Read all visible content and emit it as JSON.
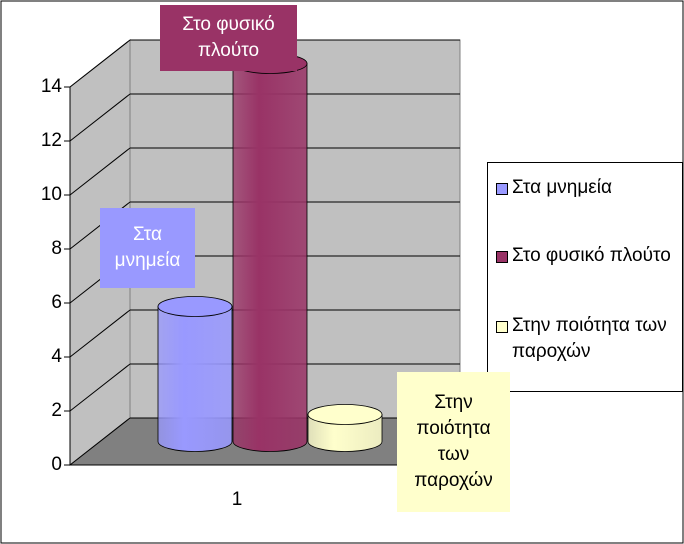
{
  "chart_data": {
    "type": "bar3d_cylinder",
    "categories": [
      "1"
    ],
    "series": [
      {
        "name": "Στα μνημεία",
        "color": "#9999ff",
        "values": [
          5
        ]
      },
      {
        "name": "Στο φυσικό πλούτο",
        "color": "#993366",
        "values": [
          14
        ]
      },
      {
        "name": "Στην ποιότητα των παροχών",
        "color": "#ffffcc",
        "values": [
          1
        ]
      }
    ],
    "ylim": [
      0,
      14
    ],
    "yticks": [
      0,
      2,
      4,
      6,
      8,
      10,
      12,
      14
    ],
    "grid": true,
    "legend": "right"
  }
}
